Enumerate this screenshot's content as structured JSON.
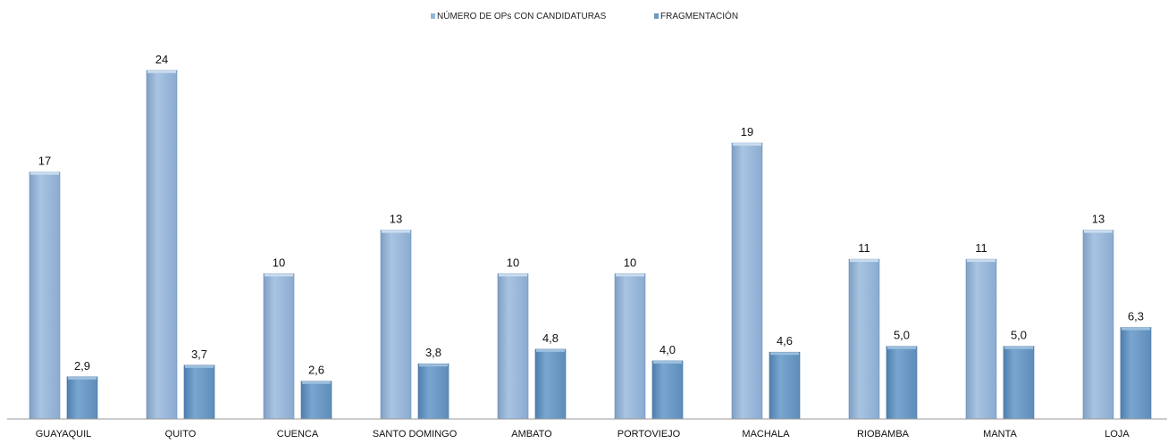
{
  "chart_data": {
    "type": "bar",
    "title": "",
    "xlabel": "",
    "ylabel": "",
    "ylim": [
      0,
      27
    ],
    "grid": false,
    "legend_position": "top-center",
    "categories": [
      "GUAYAQUIL",
      "QUITO",
      "CUENCA",
      "SANTO DOMINGO",
      "AMBATO",
      "PORTOVIEJO",
      "MACHALA",
      "RIOBAMBA",
      "MANTA",
      "LOJA"
    ],
    "series": [
      {
        "name": "NÚMERO DE OPs CON CANDIDATURAS",
        "color": "#94b4d6",
        "values": [
          17,
          24,
          10,
          13,
          10,
          10,
          19,
          11,
          11,
          13
        ],
        "labels": [
          "17",
          "24",
          "10",
          "13",
          "10",
          "10",
          "19",
          "11",
          "11",
          "13"
        ]
      },
      {
        "name": "FRAGMENTACIÓN",
        "color": "#6a99c4",
        "values": [
          2.9,
          3.7,
          2.6,
          3.8,
          4.8,
          4.0,
          4.6,
          5.0,
          5.0,
          6.3
        ],
        "labels": [
          "2,9",
          "3,7",
          "2,6",
          "3,8",
          "4,8",
          "4,0",
          "4,6",
          "5,0",
          "5,0",
          "6,3"
        ]
      }
    ]
  }
}
